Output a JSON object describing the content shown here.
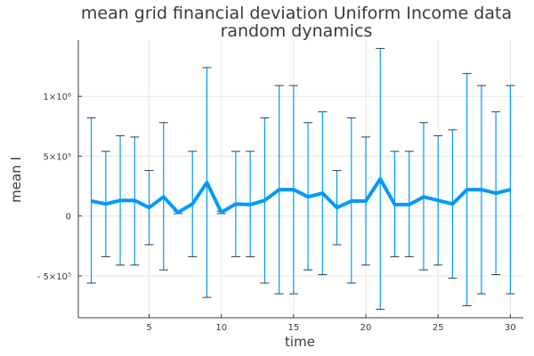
{
  "chart_data": {
    "type": "line",
    "title": [
      "mean grid financial deviation Uniform Income data",
      "random dynamics"
    ],
    "xlabel": "time",
    "ylabel": "mean I",
    "xlim": [
      0.1,
      30.9
    ],
    "ylim": [
      -850000,
      1470000
    ],
    "xticks": [
      5,
      10,
      15,
      20,
      25,
      30
    ],
    "yticks": [
      {
        "value": -500000,
        "label": "- 5×10⁵"
      },
      {
        "value": 0,
        "label": "0"
      },
      {
        "value": 500000,
        "label": "5×10⁵"
      },
      {
        "value": 1000000,
        "label": "1×10⁶"
      }
    ],
    "grid": true,
    "legend": "none",
    "colors": {
      "series": "#009af9",
      "caps": "#3a3a3a"
    },
    "x": [
      1,
      2,
      3,
      4,
      5,
      6,
      7,
      8,
      9,
      10,
      11,
      12,
      13,
      14,
      15,
      16,
      17,
      18,
      19,
      20,
      21,
      22,
      23,
      24,
      25,
      26,
      27,
      28,
      29,
      30
    ],
    "series": [
      {
        "values": [
          125000,
          100000,
          130000,
          130000,
          70000,
          160000,
          30000,
          100000,
          280000,
          30000,
          100000,
          95000,
          130000,
          220000,
          220000,
          160000,
          190000,
          70000,
          125000,
          125000,
          310000,
          95000,
          95000,
          160000,
          130000,
          100000,
          220000,
          220000,
          190000,
          220000
        ],
        "upper": [
          820000,
          540000,
          670000,
          660000,
          380000,
          780000,
          40000,
          540000,
          1240000,
          40000,
          540000,
          540000,
          820000,
          1090000,
          1090000,
          780000,
          870000,
          380000,
          820000,
          660000,
          1400000,
          540000,
          540000,
          780000,
          670000,
          720000,
          1190000,
          1090000,
          870000,
          1090000
        ],
        "lower": [
          -560000,
          -340000,
          -410000,
          -410000,
          -240000,
          -450000,
          20000,
          -340000,
          -680000,
          20000,
          -340000,
          -340000,
          -560000,
          -650000,
          -650000,
          -450000,
          -490000,
          -240000,
          -560000,
          -410000,
          -780000,
          -340000,
          -340000,
          -450000,
          -410000,
          -520000,
          -750000,
          -650000,
          -490000,
          -650000
        ]
      }
    ]
  }
}
